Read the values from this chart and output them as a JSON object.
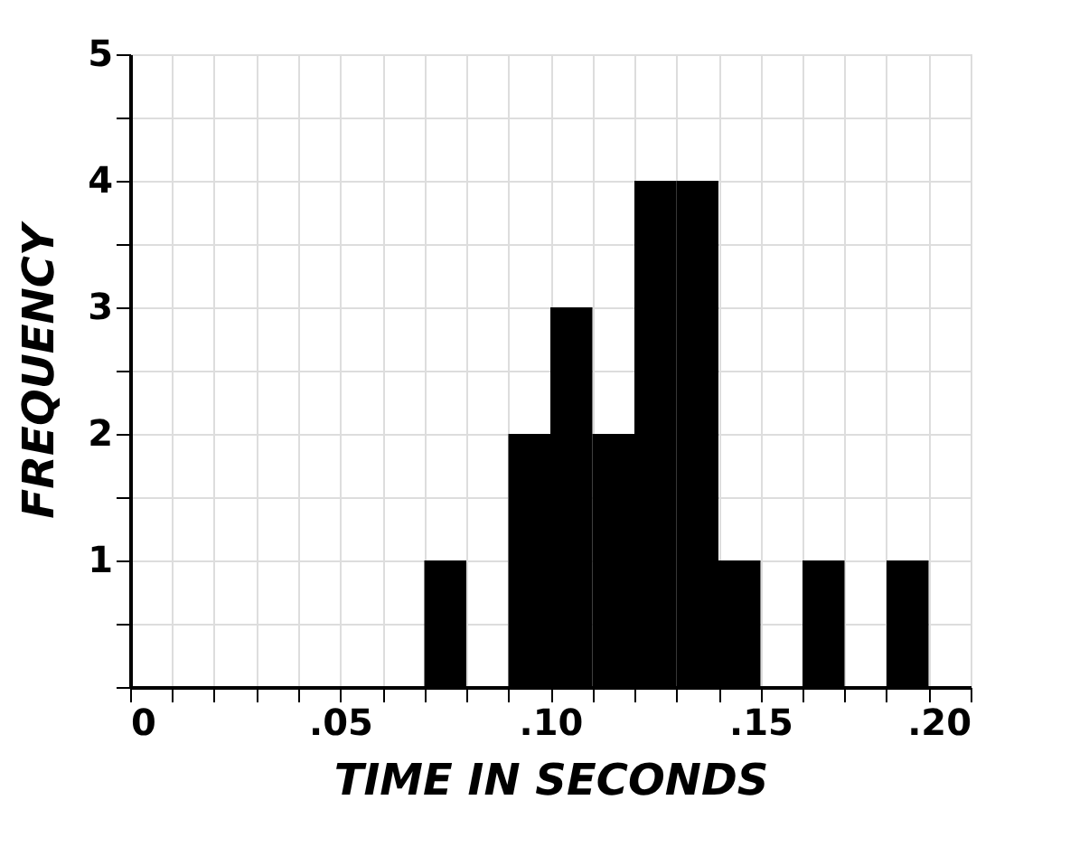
{
  "chart_data": {
    "type": "histogram",
    "xlabel": "TIME IN SECONDS",
    "ylabel": "FREQUENCY",
    "bins": [
      0,
      0.01,
      0.02,
      0.03,
      0.04,
      0.05,
      0.06,
      0.07,
      0.08,
      0.09,
      0.1,
      0.11,
      0.12,
      0.13,
      0.14,
      0.15,
      0.16,
      0.17,
      0.18,
      0.19,
      0.2
    ],
    "values": [
      0,
      0,
      0,
      0,
      0,
      0,
      0,
      1,
      0,
      2,
      3,
      2,
      4,
      4,
      1,
      0,
      1,
      0,
      1,
      0
    ],
    "color": "#000000",
    "xlim": [
      0,
      0.2
    ],
    "xticks": [
      0,
      {
        "value": 0.01,
        "label": null
      },
      {
        "value": 0.02,
        "label": null
      },
      {
        "value": 0.03,
        "label": null
      },
      {
        "value": 0.04,
        "label": null
      },
      {
        "value": 0.05,
        "label": ".05"
      },
      {
        "value": 0.06,
        "label": null
      },
      {
        "value": 0.07,
        "label": null
      },
      {
        "value": 0.08,
        "label": null
      },
      {
        "value": 0.09,
        "label": null
      },
      {
        "value": 0.1,
        "label": ".10"
      },
      {
        "value": 0.11,
        "label": null
      },
      {
        "value": 0.12,
        "label": null
      },
      {
        "value": 0.13,
        "label": null
      },
      {
        "value": 0.14,
        "label": null
      },
      {
        "value": 0.15,
        "label": ".15"
      },
      {
        "value": 0.16,
        "label": null
      },
      {
        "value": 0.17,
        "label": null
      },
      {
        "value": 0.18,
        "label": null
      },
      {
        "value": 0.19,
        "label": null
      },
      {
        "value": 0.2,
        "label": ".20"
      }
    ],
    "ylim": [
      0,
      5
    ],
    "yticks": [
      {
        "value": 0,
        "label": null
      },
      {
        "value": 0.5,
        "label": null
      },
      1,
      {
        "value": 1.5,
        "label": null
      },
      2,
      {
        "value": 2.5,
        "label": null
      },
      3,
      {
        "value": 3.5,
        "label": null
      },
      4,
      {
        "value": 4.5,
        "label": null
      },
      5
    ],
    "grid": true
  }
}
